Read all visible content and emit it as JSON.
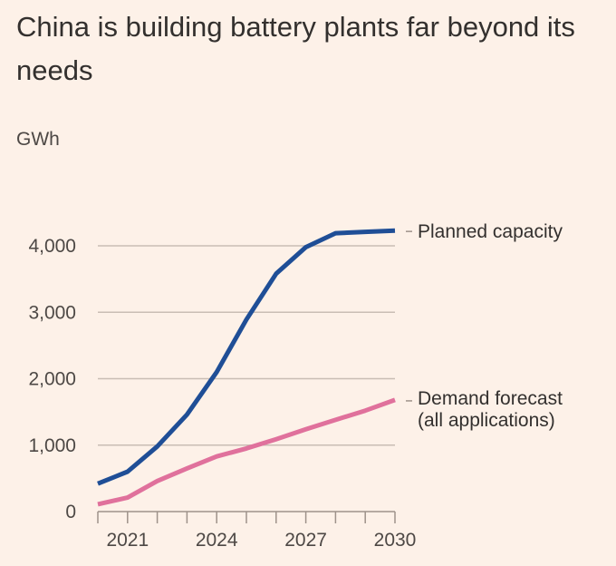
{
  "chart_data": {
    "type": "line",
    "title": "China is building battery plants far beyond its needs",
    "ylabel": "GWh",
    "xlabel": "",
    "x": [
      2020,
      2021,
      2022,
      2023,
      2024,
      2025,
      2026,
      2027,
      2028,
      2029,
      2030
    ],
    "xlim": [
      2020,
      2030
    ],
    "ylim": [
      0,
      4000
    ],
    "x_ticks": [
      2020,
      2021,
      2022,
      2023,
      2024,
      2025,
      2026,
      2027,
      2028,
      2029,
      2030
    ],
    "x_tick_labels": [
      {
        "value": 2021,
        "label": "2021"
      },
      {
        "value": 2024,
        "label": "2024"
      },
      {
        "value": 2027,
        "label": "2027"
      },
      {
        "value": 2030,
        "label": "2030"
      }
    ],
    "y_ticks": [
      {
        "value": 0,
        "label": "0"
      },
      {
        "value": 1000,
        "label": "1,000"
      },
      {
        "value": 2000,
        "label": "2,000"
      },
      {
        "value": 3000,
        "label": "3,000"
      },
      {
        "value": 4000,
        "label": "4,000"
      }
    ],
    "grid": true,
    "legend_placement": "right (direct labels at line ends)",
    "series": [
      {
        "name": "Planned capacity",
        "label_lines": [
          "Planned capacity"
        ],
        "color": "#1f4e96",
        "values": [
          420,
          600,
          980,
          1460,
          2100,
          2890,
          3580,
          3980,
          4190,
          4210,
          4230
        ]
      },
      {
        "name": "Demand forecast (all applications)",
        "label_lines": [
          "Demand forecast",
          "(all applications)"
        ],
        "color": "#e0719c",
        "values": [
          110,
          210,
          460,
          650,
          830,
          950,
          1090,
          1240,
          1380,
          1520,
          1680
        ]
      }
    ]
  },
  "colors": {
    "background": "#fdf1e8",
    "gridline": "#c9bdb4",
    "axis": "#9e928a",
    "text": "#33302e"
  }
}
